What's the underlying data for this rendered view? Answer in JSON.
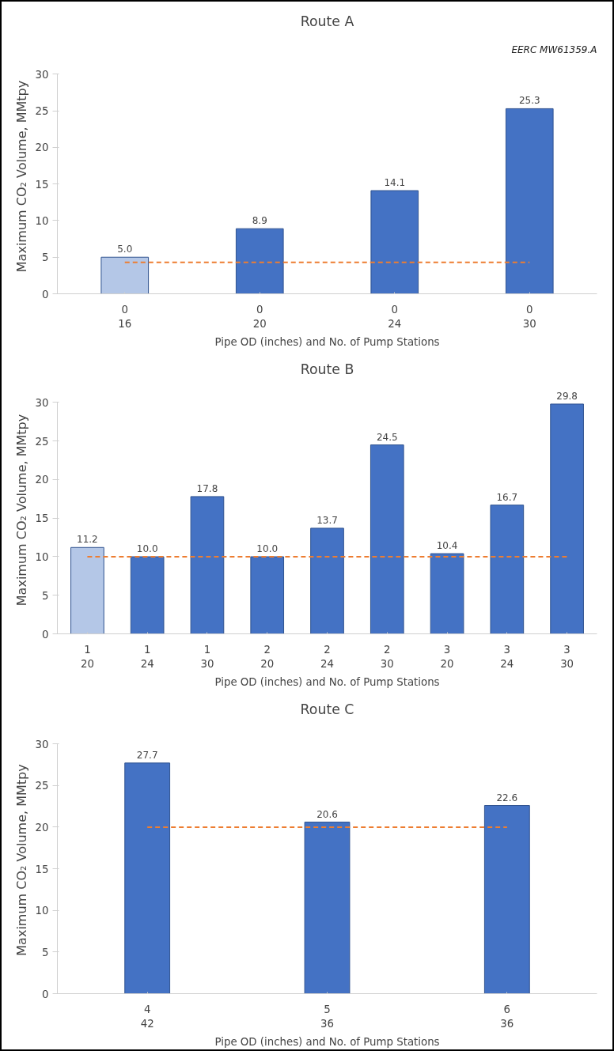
{
  "chart_data": [
    {
      "type": "bar",
      "title": "Route A",
      "annotations": [
        "EERC MW61359.A"
      ],
      "xlabel": "Pipe OD (inches) and No. of Pump Stations",
      "ylabel": "Maximum CO₂ Volume, MMtpy",
      "categories": [
        "0\n16",
        "0\n20",
        "0\n24",
        "0\n30"
      ],
      "values": [
        5.0,
        8.9,
        14.1,
        25.3
      ],
      "value_labels": [
        "5.0",
        "8.9",
        "14.1",
        "25.3"
      ],
      "colors": [
        "#b4c7e7",
        "#4472c4",
        "#4472c4",
        "#4472c4"
      ],
      "ylim": [
        0,
        30
      ],
      "yticks": [
        0,
        5,
        10,
        15,
        20,
        25,
        30
      ],
      "grid": false,
      "ref_lines": [
        {
          "axis": "y",
          "value": 4.3,
          "color": "#ed7d31",
          "line_style": "dashed"
        }
      ]
    },
    {
      "type": "bar",
      "title": "Route B",
      "xlabel": "Pipe OD (inches) and No. of Pump Stations",
      "ylabel": "Maximum CO₂ Volume, MMtpy",
      "categories": [
        "1\n20",
        "1\n24",
        "1\n30",
        "2\n20",
        "2\n24",
        "2\n30",
        "3\n20",
        "3\n24",
        "3\n30"
      ],
      "values": [
        11.2,
        10.0,
        17.8,
        10.0,
        13.7,
        24.5,
        10.4,
        16.7,
        29.8
      ],
      "value_labels": [
        "11.2",
        "10.0",
        "17.8",
        "10.0",
        "13.7",
        "24.5",
        "10.4",
        "16.7",
        "29.8"
      ],
      "colors": [
        "#b4c7e7",
        "#4472c4",
        "#4472c4",
        "#4472c4",
        "#4472c4",
        "#4472c4",
        "#4472c4",
        "#4472c4",
        "#4472c4"
      ],
      "ylim": [
        0,
        30
      ],
      "yticks": [
        0,
        5,
        10,
        15,
        20,
        25,
        30
      ],
      "grid": false,
      "ref_lines": [
        {
          "axis": "y",
          "value": 10.0,
          "color": "#ed7d31",
          "line_style": "dashed"
        }
      ]
    },
    {
      "type": "bar",
      "title": "Route C",
      "xlabel": "Pipe OD (inches) and No. of Pump Stations",
      "ylabel": "Maximum CO₂ Volume, MMtpy",
      "categories": [
        "4\n42",
        "5\n36",
        "6\n36"
      ],
      "values": [
        27.7,
        20.6,
        22.6
      ],
      "value_labels": [
        "27.7",
        "20.6",
        "22.6"
      ],
      "colors": [
        "#4472c4",
        "#4472c4",
        "#4472c4"
      ],
      "ylim": [
        0,
        30
      ],
      "yticks": [
        0,
        5,
        10,
        15,
        20,
        25,
        30
      ],
      "grid": false,
      "ref_lines": [
        {
          "axis": "y",
          "value": 20.0,
          "color": "#ed7d31",
          "line_style": "dashed"
        }
      ]
    }
  ]
}
